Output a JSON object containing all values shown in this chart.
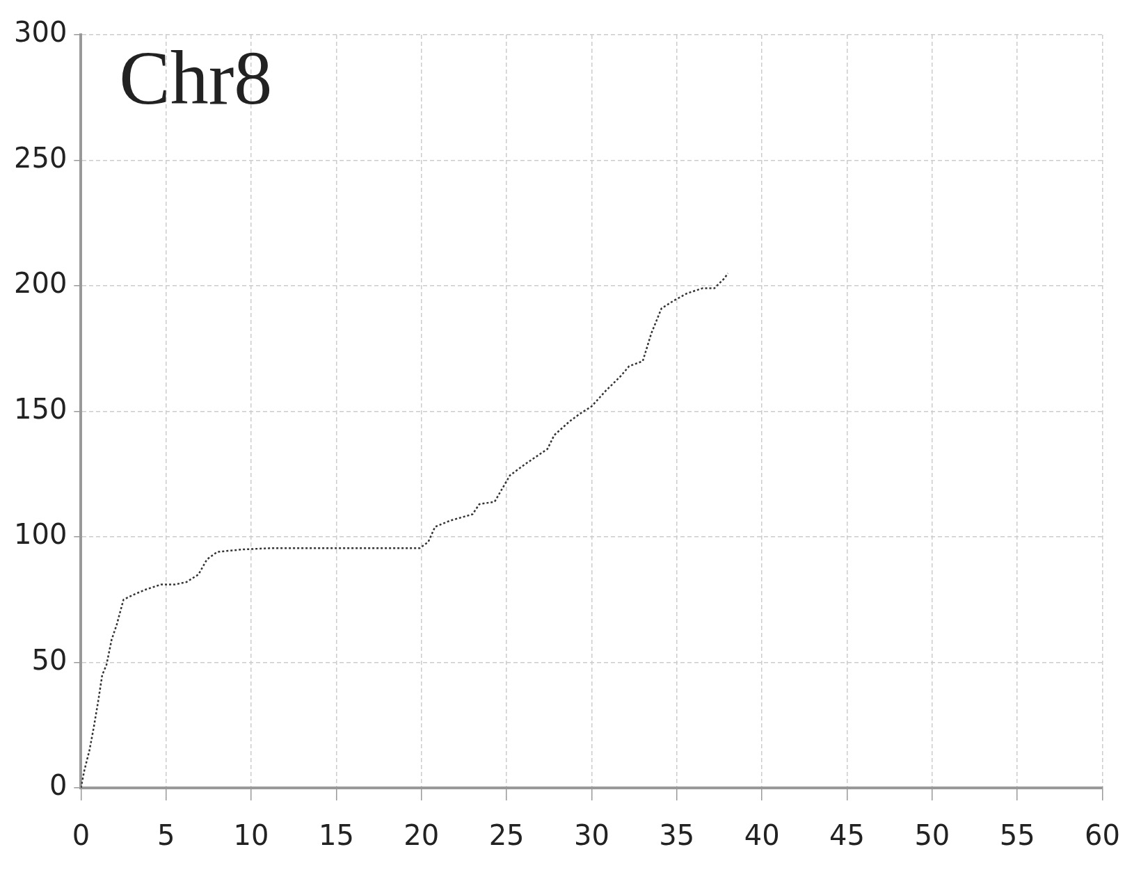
{
  "chart_data": {
    "type": "line",
    "title": "Chr8",
    "x": [
      0,
      0.2,
      0.5,
      0.75,
      1.0,
      1.25,
      1.5,
      1.8,
      2.1,
      2.5,
      3.1,
      3.8,
      4.7,
      5.5,
      6.2,
      6.9,
      7.4,
      8,
      9.5,
      11.2,
      14.7,
      19.9,
      20.4,
      20.8,
      21.7,
      23,
      23.4,
      24.3,
      25.2,
      26.1,
      27.4,
      27.8,
      28.7,
      29.3,
      30,
      30.8,
      31.7,
      32.2,
      33,
      33.5,
      34.1,
      34.8,
      35.6,
      36.5,
      37.2,
      37.8,
      38
    ],
    "series": [
      {
        "color": "#333333",
        "values": [
          0,
          7,
          15,
          24,
          34,
          45,
          49,
          59,
          65,
          75,
          77,
          79,
          81,
          81,
          82,
          85,
          91,
          94,
          95,
          95.5,
          95.5,
          95.5,
          98,
          104,
          106.5,
          109,
          113,
          114,
          124.5,
          129,
          135,
          140.5,
          146,
          149,
          152,
          158,
          164,
          168,
          170,
          181,
          191,
          194,
          197,
          199,
          199,
          203,
          205
        ]
      }
    ],
    "xlim": [
      0,
      60
    ],
    "xticks": [
      0,
      5,
      10,
      15,
      20,
      25,
      30,
      35,
      40,
      45,
      50,
      55,
      60
    ],
    "ylim": [
      0,
      300
    ],
    "yticks": [
      0,
      50,
      100,
      150,
      200,
      250,
      300
    ],
    "grid": true,
    "legend": false,
    "marker": "none",
    "line_style": "dotted"
  }
}
